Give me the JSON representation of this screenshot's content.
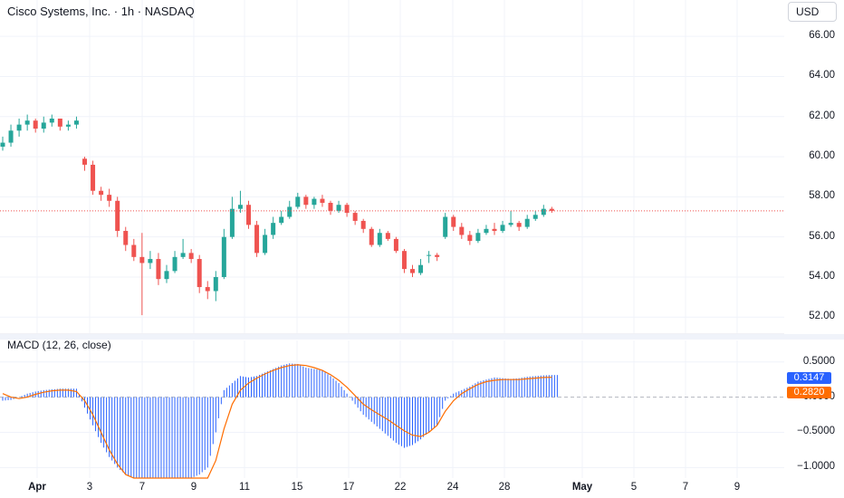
{
  "header": {
    "symbol": "Cisco Systems, Inc. · 1h · NASDAQ",
    "currency": "USD"
  },
  "macd_panel": {
    "label": "MACD (12, 26, close)",
    "macd_value": "0.3147",
    "signal_value": "0.2820"
  },
  "colors": {
    "up": "#26a69a",
    "down": "#ef5350",
    "macd_hist": "#2962ff",
    "signal_line": "#ff6d00",
    "macd_badge": "#2962ff",
    "signal_badge": "#ff6d00",
    "last_price_line": "#ef5350",
    "grid": "#f0f3fa"
  },
  "chart_data": [
    {
      "type": "candlestick",
      "title": "Cisco Systems, Inc. · 1h · NASDAQ",
      "ylabel": "USD",
      "ylim": [
        51.2,
        67.0
      ],
      "y_ticks": [
        "66.00",
        "64.00",
        "62.00",
        "60.00",
        "58.00",
        "56.00",
        "54.00",
        "52.00"
      ],
      "y_tick_values": [
        66,
        64,
        62,
        60,
        58,
        56,
        54,
        52
      ],
      "x_ticks": [
        "Apr",
        "3",
        "7",
        "9",
        "11",
        "15",
        "17",
        "22",
        "24",
        "28",
        "May",
        "5",
        "7",
        "9"
      ],
      "x_ticks_bold": [
        "Apr",
        "May"
      ],
      "last_price": 57.3,
      "close": [
        60.7,
        61.3,
        61.6,
        61.8,
        61.4,
        61.7,
        61.9,
        61.5,
        61.6,
        61.8,
        59.6,
        58.3,
        58.1,
        57.8,
        56.3,
        55.6,
        55.0,
        54.7,
        54.9,
        53.9,
        54.3,
        55.0,
        55.2,
        54.9,
        53.5,
        53.3,
        54.0,
        56.0,
        57.4,
        57.6,
        56.6,
        55.2,
        56.1,
        56.7,
        57.0,
        57.5,
        58.0,
        57.6,
        57.9,
        57.7,
        57.3,
        57.6,
        57.2,
        56.8,
        56.4,
        55.6,
        56.2,
        55.9,
        55.3,
        54.4,
        54.2,
        54.6,
        55.1,
        55.0,
        57.0,
        56.5,
        56.1,
        55.8,
        56.2,
        56.4,
        56.3,
        56.6,
        56.7,
        56.5,
        56.9,
        57.1,
        57.4,
        57.3
      ],
      "open": [
        60.5,
        60.7,
        61.3,
        61.6,
        61.8,
        61.4,
        61.7,
        61.9,
        61.5,
        61.6,
        59.9,
        59.6,
        58.3,
        58.1,
        57.8,
        56.3,
        55.6,
        55.0,
        54.7,
        54.9,
        53.9,
        54.3,
        55.0,
        55.2,
        54.9,
        53.5,
        53.3,
        54.0,
        56.0,
        57.4,
        57.6,
        56.6,
        55.2,
        56.1,
        56.7,
        57.0,
        57.5,
        58.0,
        57.6,
        57.9,
        57.7,
        57.3,
        57.6,
        57.2,
        56.8,
        56.4,
        55.6,
        56.2,
        55.9,
        55.3,
        54.4,
        54.2,
        55.1,
        55.1,
        56.0,
        57.0,
        56.5,
        56.1,
        55.8,
        56.2,
        56.4,
        56.3,
        56.6,
        56.7,
        56.5,
        56.9,
        57.1,
        57.4
      ],
      "high": [
        61.0,
        61.6,
        61.9,
        62.1,
        61.9,
        62.0,
        62.1,
        61.9,
        61.8,
        62.0,
        60.0,
        59.8,
        58.5,
        58.4,
        58.0,
        56.5,
        55.9,
        56.2,
        55.3,
        55.2,
        54.6,
        55.3,
        55.9,
        55.4,
        55.1,
        53.8,
        54.3,
        56.4,
        58.0,
        58.3,
        57.8,
        56.8,
        56.4,
        57.0,
        57.3,
        57.8,
        58.2,
        58.1,
        58.0,
        58.1,
        57.8,
        57.8,
        57.7,
        57.3,
        56.9,
        56.5,
        56.4,
        56.3,
        56.0,
        55.4,
        54.6,
        54.9,
        55.3,
        55.2,
        57.2,
        57.1,
        56.7,
        56.3,
        56.4,
        56.6,
        56.7,
        56.8,
        57.3,
        56.8,
        57.1,
        57.3,
        57.6,
        57.5
      ],
      "low": [
        60.3,
        60.5,
        61.0,
        61.3,
        61.2,
        61.2,
        61.5,
        61.3,
        61.3,
        61.4,
        59.3,
        58.1,
        57.8,
        57.5,
        56.0,
        55.3,
        54.8,
        52.1,
        54.4,
        53.6,
        53.7,
        54.2,
        54.9,
        54.7,
        53.2,
        52.9,
        52.8,
        53.9,
        55.9,
        57.2,
        56.4,
        55.0,
        55.1,
        55.9,
        56.6,
        56.9,
        57.4,
        57.4,
        57.4,
        57.5,
        57.1,
        57.2,
        57.0,
        56.6,
        56.2,
        55.5,
        55.5,
        55.8,
        55.2,
        54.2,
        54.0,
        54.1,
        54.7,
        54.8,
        55.9,
        56.3,
        55.9,
        55.6,
        55.7,
        56.1,
        56.1,
        56.2,
        56.5,
        56.3,
        56.4,
        56.8,
        57.0,
        57.2
      ]
    },
    {
      "type": "bar",
      "title": "MACD (12, 26, close)",
      "ylim": [
        -1.15,
        0.6
      ],
      "y_ticks": [
        "0.5000",
        "0.0000",
        "−0.5000",
        "−1.0000"
      ],
      "y_tick_values": [
        0.5,
        0.0,
        -0.5,
        -1.0
      ],
      "series": [
        {
          "name": "MACD",
          "values": [
            -0.05,
            -0.04,
            0.0,
            0.05,
            0.08,
            0.1,
            0.11,
            0.12,
            0.12,
            0.12,
            -0.15,
            -0.4,
            -0.65,
            -0.85,
            -1.0,
            -1.1,
            -1.15,
            -1.2,
            -1.2,
            -1.2,
            -1.2,
            -1.2,
            -1.2,
            -1.15,
            -1.1,
            -1.0,
            -0.5,
            0.1,
            0.2,
            0.3,
            0.28,
            0.3,
            0.35,
            0.4,
            0.45,
            0.48,
            0.47,
            0.42,
            0.4,
            0.38,
            0.3,
            0.2,
            0.05,
            -0.1,
            -0.25,
            -0.35,
            -0.45,
            -0.55,
            -0.65,
            -0.72,
            -0.68,
            -0.6,
            -0.5,
            -0.4,
            -0.05,
            0.05,
            0.1,
            0.15,
            0.22,
            0.25,
            0.28,
            0.27,
            0.26,
            0.27,
            0.29,
            0.3,
            0.31,
            0.3147
          ]
        },
        {
          "name": "Signal",
          "values": [
            0.05,
            0.0,
            -0.02,
            0.0,
            0.04,
            0.07,
            0.09,
            0.1,
            0.1,
            0.08,
            -0.05,
            -0.25,
            -0.5,
            -0.75,
            -0.95,
            -1.1,
            -1.2,
            -1.25,
            -1.25,
            -1.25,
            -1.25,
            -1.25,
            -1.25,
            -1.25,
            -1.22,
            -1.15,
            -0.9,
            -0.45,
            -0.1,
            0.1,
            0.2,
            0.27,
            0.33,
            0.38,
            0.42,
            0.45,
            0.46,
            0.45,
            0.42,
            0.38,
            0.32,
            0.24,
            0.14,
            0.02,
            -0.1,
            -0.18,
            -0.25,
            -0.32,
            -0.4,
            -0.48,
            -0.54,
            -0.56,
            -0.5,
            -0.4,
            -0.2,
            -0.05,
            0.05,
            0.12,
            0.18,
            0.22,
            0.24,
            0.25,
            0.25,
            0.25,
            0.26,
            0.27,
            0.28,
            0.282
          ]
        }
      ]
    }
  ]
}
